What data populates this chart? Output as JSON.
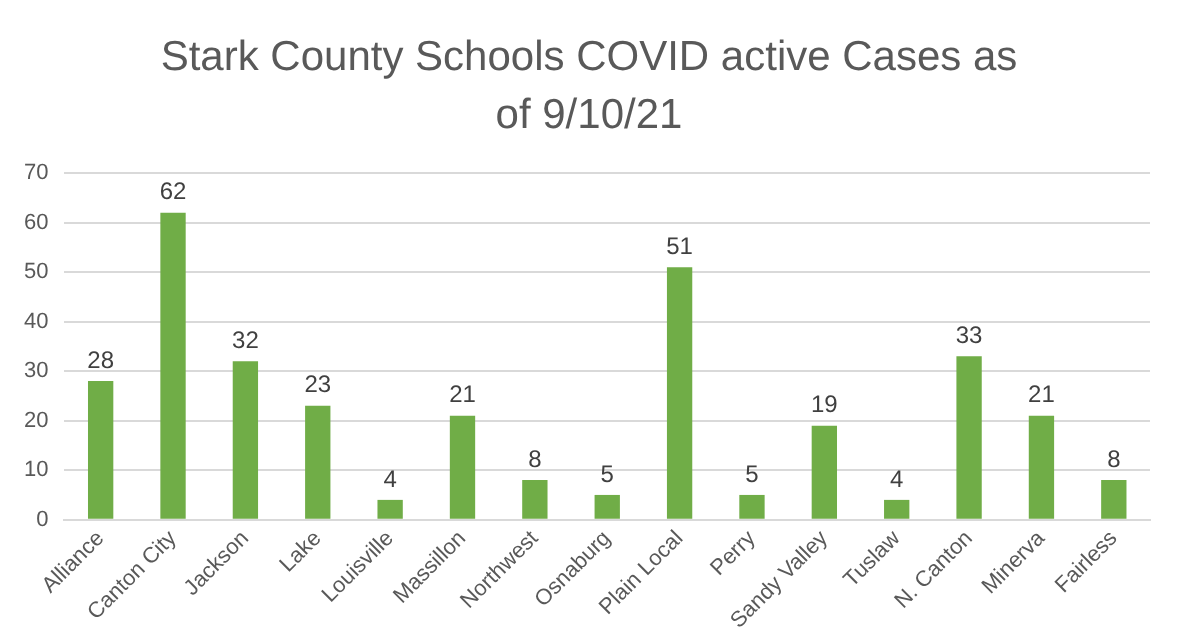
{
  "chart_data": {
    "type": "bar",
    "title": "Stark County Schools COVID active Cases as of 9/10/21",
    "categories": [
      "Alliance",
      "Canton City",
      "Jackson",
      "Lake",
      "Louisville",
      "Massillon",
      "Northwest",
      "Osnaburg",
      "Plain Local",
      "Perry",
      "Sandy Valley",
      "Tuslaw",
      "N. Canton",
      "Minerva",
      "Fairless"
    ],
    "values": [
      28,
      62,
      32,
      23,
      4,
      21,
      8,
      5,
      51,
      5,
      19,
      4,
      33,
      21,
      8
    ],
    "color": "#70ad47",
    "ylim": [
      0,
      70
    ],
    "yticks": [
      0,
      10,
      20,
      30,
      40,
      50,
      60,
      70
    ],
    "grid": "y",
    "data_labels": true,
    "legend": false
  }
}
